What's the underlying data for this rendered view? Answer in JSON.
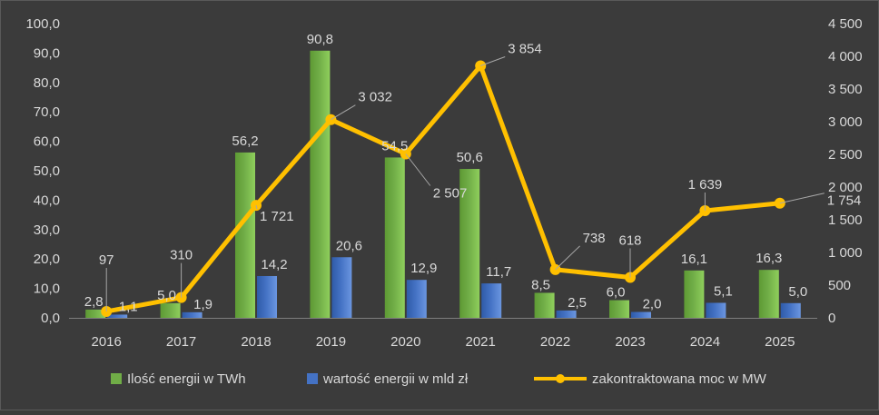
{
  "chart_data": {
    "type": "bar+line",
    "categories": [
      "2016",
      "2017",
      "2018",
      "2019",
      "2020",
      "2021",
      "2022",
      "2023",
      "2024",
      "2025"
    ],
    "series": [
      {
        "name": "Ilość energii w TWh",
        "type": "bar",
        "axis": "left",
        "color": "#70ad47",
        "values": [
          2.8,
          5.0,
          56.2,
          90.8,
          54.5,
          50.6,
          8.5,
          6.0,
          16.1,
          16.3
        ],
        "labels": [
          "2,8",
          "5,0",
          "56,2",
          "90,8",
          "54,5",
          "50,6",
          "8,5",
          "6,0",
          "16,1",
          "16,3"
        ]
      },
      {
        "name": "wartość energii w mld zł",
        "type": "bar",
        "axis": "left",
        "color": "#4472c4",
        "values": [
          1.1,
          1.9,
          14.2,
          20.6,
          12.9,
          11.7,
          2.5,
          2.0,
          5.1,
          5.0
        ],
        "labels": [
          "1,1",
          "1,9",
          "14,2",
          "20,6",
          "12,9",
          "11,7",
          "2,5",
          "2,0",
          "5,1",
          "5,0"
        ]
      },
      {
        "name": "zakontraktowana moc w MW",
        "type": "line",
        "axis": "right",
        "color": "#ffc000",
        "values": [
          97,
          310,
          1721,
          3032,
          2507,
          3854,
          738,
          618,
          1639,
          1754
        ],
        "labels": [
          "97",
          "310",
          "1 721",
          "3 032",
          "2 507",
          "3 854",
          "738",
          "618",
          "1 639",
          "1 754"
        ]
      }
    ],
    "y_left": {
      "min": 0,
      "max": 100,
      "ticks": [
        "0,0",
        "10,0",
        "20,0",
        "30,0",
        "40,0",
        "50,0",
        "60,0",
        "70,0",
        "80,0",
        "90,0",
        "100,0"
      ]
    },
    "y_right": {
      "min": 0,
      "max": 4500,
      "ticks": [
        "0",
        "500",
        "1 000",
        "1 500",
        "2 000",
        "2 500",
        "3 000",
        "3 500",
        "4 000",
        "4 500"
      ]
    },
    "legend_position": "bottom",
    "grid": false
  }
}
